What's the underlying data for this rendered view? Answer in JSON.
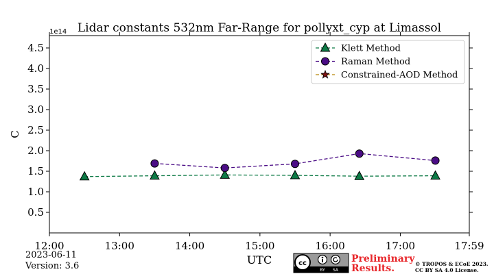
{
  "chart_data": {
    "type": "line",
    "title": "Lidar constants 532nm Far-Range for pollyxt_cyp at Limassol",
    "xlabel": "UTC",
    "ylabel": "C",
    "y_scale_label": "1e14",
    "xlim": [
      "12:00",
      "17:59"
    ],
    "ylim": [
      0,
      4.8
    ],
    "x_ticks": [
      "12:00",
      "13:00",
      "14:00",
      "15:00",
      "16:00",
      "17:00",
      "17:59"
    ],
    "y_ticks": [
      "0.5",
      "1.0",
      "1.5",
      "2.0",
      "2.5",
      "3.0",
      "3.5",
      "4.0",
      "4.5"
    ],
    "grid": false,
    "legend_position": "top-right",
    "series": [
      {
        "name": "Klett Method",
        "marker": "triangle",
        "color": "#0c7a45",
        "line_color": "#0c7a45",
        "x": [
          "12:30",
          "13:30",
          "14:30",
          "15:30",
          "16:25",
          "17:30"
        ],
        "values": [
          1.37,
          1.39,
          1.41,
          1.4,
          1.38,
          1.39
        ]
      },
      {
        "name": "Raman Method",
        "marker": "circle",
        "color": "#4b0d86",
        "line_color": "#4b0d86",
        "x": [
          "13:30",
          "14:30",
          "15:30",
          "16:25",
          "17:30"
        ],
        "values": [
          1.69,
          1.58,
          1.68,
          1.93,
          1.76
        ]
      },
      {
        "name": "Constrained-AOD Method",
        "marker": "star",
        "color": "#7a1212",
        "line_color": "#b8860b",
        "x": [],
        "values": []
      }
    ]
  },
  "footer": {
    "date": "2023-06-11",
    "version": "Version: 3.6",
    "preliminary_line1": "Preliminary",
    "preliminary_line2": "Results.",
    "copyright_line1": "© TROPOS & ECoE 2023.",
    "copyright_line2": "CC BY SA 4.0 License.",
    "license_badge": {
      "icon": "cc-icon",
      "by_label": "BY",
      "sa_label": "SA"
    }
  }
}
